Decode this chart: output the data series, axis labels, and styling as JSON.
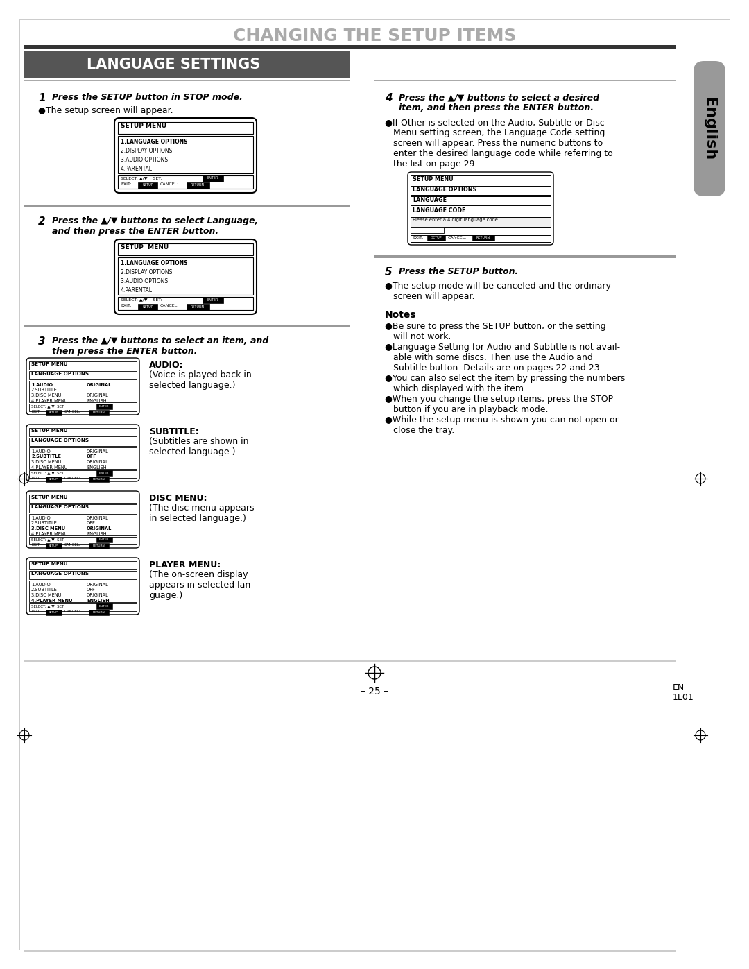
{
  "title": "CHANGING THE SETUP ITEMS",
  "section_title": "LANGUAGE SETTINGS",
  "bg_color": "#ffffff",
  "title_color": "#aaaaaa",
  "section_bg": "#555555",
  "divider_dark": "#333333",
  "divider_gray": "#888888",
  "tab_color": "#999999",
  "page_number": "– 25 –",
  "page_code_1": "EN",
  "page_code_2": "1L01",
  "menu_items_main": [
    "1.LANGUAGE OPTIONS",
    "2.DISPLAY OPTIONS",
    "3.AUDIO OPTIONS",
    "4.PARENTAL"
  ],
  "lang_opts_items": [
    "1.AUDIO",
    "2.SUBTITLE",
    "3.DISC MENU",
    "4.PLAYER MENU"
  ],
  "lang_opts_vals_audio": [
    "ORIGINAL",
    "",
    "ORIGINAL",
    "ENGLISH"
  ],
  "lang_opts_vals_sub": [
    "ORIGINAL",
    "OFF",
    "ORIGINAL",
    "ENGLISH"
  ],
  "lang_opts_vals_disc": [
    "ORIGINAL",
    "OFF",
    "ORIGINAL",
    "ENGLISH"
  ],
  "lang_opts_vals_player": [
    "ORIGINAL",
    "OFF",
    "ORIGINAL",
    "ENGLISH"
  ],
  "audio_label": "AUDIO:",
  "audio_desc1": "(Voice is played back in",
  "audio_desc2": "selected language.)",
  "subtitle_label": "SUBTITLE:",
  "subtitle_desc1": "(Subtitles are shown in",
  "subtitle_desc2": "selected language.)",
  "disc_label": "DISC MENU:",
  "disc_desc1": "(The disc menu appears",
  "disc_desc2": "in selected language.)",
  "player_label": "PLAYER MENU:",
  "player_desc1": "(The on-screen display",
  "player_desc2": "appears in selected lan-",
  "player_desc3": "guage.)",
  "step1_num": "1",
  "step1_text": "Press the SETUP button in STOP mode.",
  "step1_bullet": "●The setup screen will appear.",
  "step2_num": "2",
  "step2_line1": "Press the ▲/▼ buttons to select Language,",
  "step2_line2": "and then press the ENTER button.",
  "step3_num": "3",
  "step3_line1": "Press the ▲/▼ buttons to select an item, and",
  "step3_line2": "then press the ENTER button.",
  "step4_num": "4",
  "step4_line1": "Press the ▲/▼ buttons to select a desired",
  "step4_line2": "item, and then press the ENTER button.",
  "step4_b1": "●If Other is selected on the Audio, Subtitle or Disc",
  "step4_b2": "   Menu setting screen, the Language Code setting",
  "step4_b3": "   screen will appear. Press the numeric buttons to",
  "step4_b4": "   enter the desired language code while referring to",
  "step4_b5": "   the list on page 29.",
  "step5_num": "5",
  "step5_text": "Press the SETUP button.",
  "step5_b1": "●The setup mode will be canceled and the ordinary",
  "step5_b2": "   screen will appear.",
  "notes_title": "Notes",
  "note1_l1": "●Be sure to press the SETUP button, or the setting",
  "note1_l2": "   will not work.",
  "note2_l1": "●Language Setting for Audio and Subtitle is not avail-",
  "note2_l2": "   able with some discs. Then use the Audio and",
  "note2_l3": "   Subtitle button. Details are on pages 22 and 23.",
  "note3_l1": "●You can also select the item by pressing the numbers",
  "note3_l2": "   which displayed with the item.",
  "note4_l1": "●When you change the setup items, press the STOP",
  "note4_l2": "   button if you are in playback mode.",
  "note5_l1": "●While the setup menu is shown you can not open or",
  "note5_l2": "   close the tray."
}
